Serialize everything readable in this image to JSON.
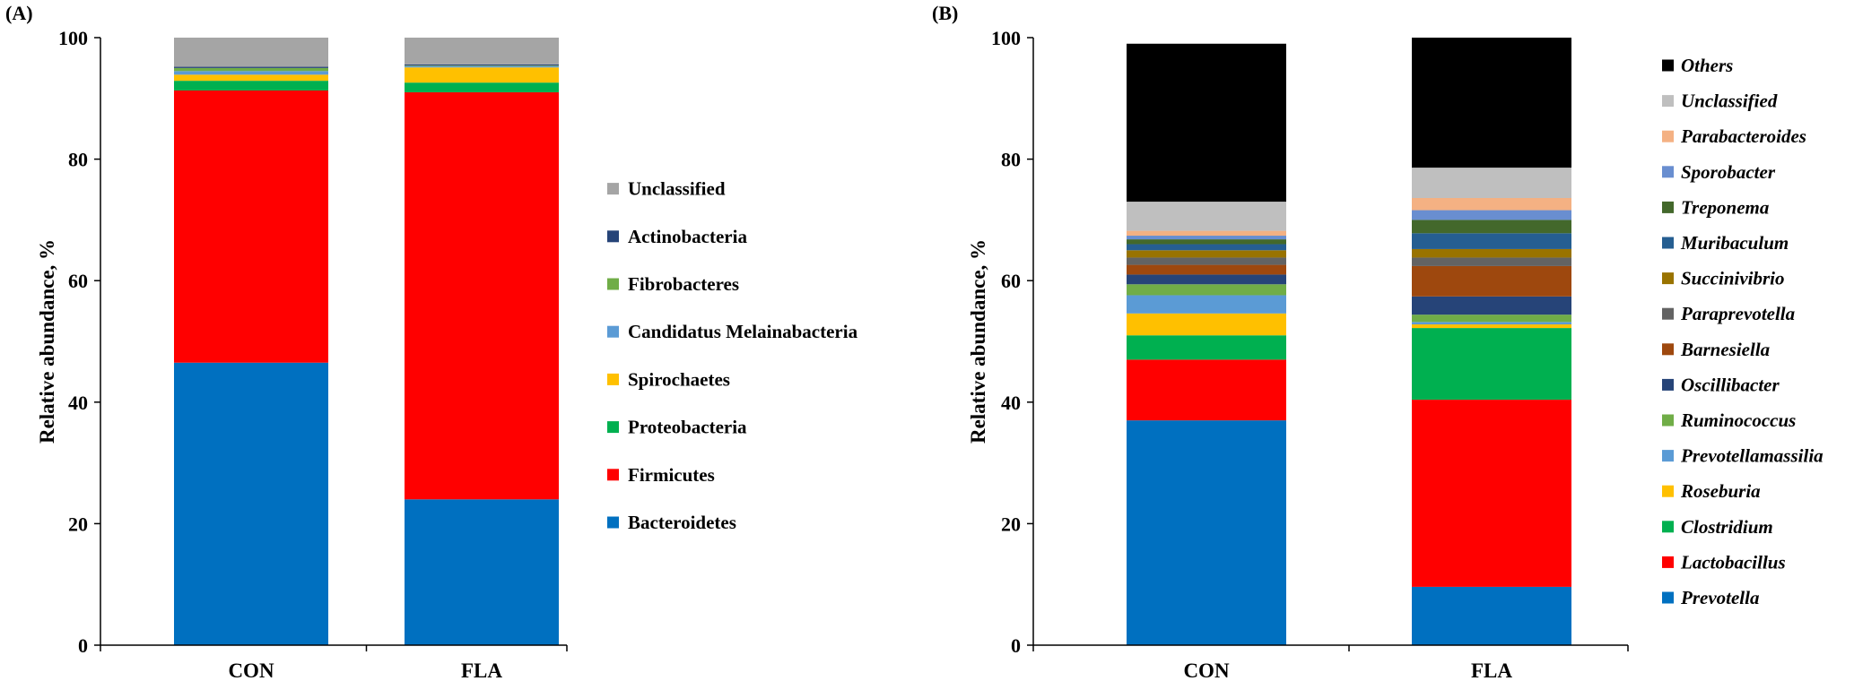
{
  "chart_data": [
    {
      "panel_label": "(A)",
      "type": "bar",
      "stacked": true,
      "ylabel": "Relative abundance, %",
      "xlabel": "",
      "ylim": [
        0,
        100
      ],
      "yticks": [
        "0",
        "20",
        "40",
        "60",
        "80",
        "100"
      ],
      "categories": [
        "CON",
        "FLA"
      ],
      "legend_italic": false,
      "legend_placement": "right",
      "series": [
        {
          "name": "Bacteroidetes",
          "color": "#0070C0",
          "values": [
            46.5,
            24.0
          ]
        },
        {
          "name": "Firmicutes",
          "color": "#FF0000",
          "values": [
            44.8,
            67.0
          ]
        },
        {
          "name": "Proteobacteria",
          "color": "#00B050",
          "values": [
            1.6,
            1.6
          ]
        },
        {
          "name": "Spirochaetes",
          "color": "#FFC000",
          "values": [
            1.0,
            2.5
          ]
        },
        {
          "name": "Candidatus Melainabacteria",
          "color": "#5B9BD5",
          "values": [
            0.6,
            0.2
          ]
        },
        {
          "name": "Fibrobacteres",
          "color": "#70AD47",
          "values": [
            0.5,
            0.1
          ]
        },
        {
          "name": "Actinobacteria",
          "color": "#264478",
          "values": [
            0.2,
            0.2
          ]
        },
        {
          "name": "Unclassified",
          "color": "#A5A5A5",
          "values": [
            4.8,
            4.4
          ]
        }
      ]
    },
    {
      "panel_label": "(B)",
      "type": "bar",
      "stacked": true,
      "ylabel": "Relative abundance, %",
      "xlabel": "",
      "ylim": [
        0,
        100
      ],
      "yticks": [
        "0",
        "20",
        "40",
        "60",
        "80",
        "100"
      ],
      "categories": [
        "CON",
        "FLA"
      ],
      "legend_italic": true,
      "legend_placement": "right",
      "series": [
        {
          "name": "Prevotella",
          "color": "#0070C0",
          "values": [
            37.0,
            9.6
          ]
        },
        {
          "name": "Lactobacillus",
          "color": "#FF0000",
          "values": [
            10.0,
            30.8
          ]
        },
        {
          "name": "Clostridium",
          "color": "#00B050",
          "values": [
            4.0,
            11.8
          ]
        },
        {
          "name": "Roseburia",
          "color": "#FFC000",
          "values": [
            3.6,
            0.6
          ]
        },
        {
          "name": "Prevotellamassilia",
          "color": "#5B9BD5",
          "values": [
            3.0,
            0.4
          ]
        },
        {
          "name": "Ruminococcus",
          "color": "#70AD47",
          "values": [
            1.8,
            1.2
          ]
        },
        {
          "name": "Oscillibacter",
          "color": "#264478",
          "values": [
            1.6,
            3.0
          ]
        },
        {
          "name": "Barnesiella",
          "color": "#9E480E",
          "values": [
            1.6,
            5.0
          ]
        },
        {
          "name": "Paraprevotella",
          "color": "#636363",
          "values": [
            1.2,
            1.4
          ]
        },
        {
          "name": "Succinivibrio",
          "color": "#997300",
          "values": [
            1.2,
            1.4
          ]
        },
        {
          "name": "Muribaculum",
          "color": "#255E91",
          "values": [
            1.0,
            2.6
          ]
        },
        {
          "name": "Treponema",
          "color": "#43682B",
          "values": [
            0.8,
            2.2
          ]
        },
        {
          "name": "Sporobacter",
          "color": "#698ED0",
          "values": [
            0.6,
            1.6
          ]
        },
        {
          "name": "Parabacteroides",
          "color": "#F4B183",
          "values": [
            0.8,
            2.0
          ]
        },
        {
          "name": "Unclassified",
          "color": "#BFBFBF",
          "values": [
            4.8,
            5.0
          ]
        },
        {
          "name": "Others",
          "color": "#000000",
          "values": [
            26.0,
            21.4
          ]
        }
      ]
    }
  ]
}
